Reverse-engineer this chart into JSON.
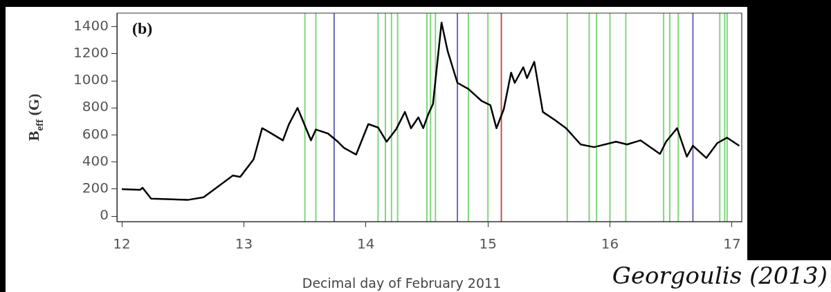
{
  "chart_data": {
    "type": "line",
    "xlabel": "Decimal day of February 2011",
    "ylabel": "B$_{eff}$ (G)",
    "annotations": [
      "(b)",
      "Georgoulis (2013)"
    ],
    "x": [
      12.0,
      12.15,
      12.17,
      12.24,
      12.54,
      12.67,
      12.76,
      12.91,
      12.97,
      13.08,
      13.15,
      13.21,
      13.32,
      13.37,
      13.44,
      13.55,
      13.59,
      13.69,
      13.77,
      13.82,
      13.92,
      14.02,
      14.1,
      14.17,
      14.25,
      14.32,
      14.37,
      14.43,
      14.47,
      14.51,
      14.55,
      14.62,
      14.67,
      14.75,
      14.84,
      14.95,
      15.02,
      15.07,
      15.13,
      15.19,
      15.22,
      15.29,
      15.32,
      15.38,
      15.45,
      15.55,
      15.64,
      15.76,
      15.87,
      16.05,
      16.14,
      16.25,
      16.41,
      16.46,
      16.55,
      16.63,
      16.68,
      16.79,
      16.88,
      16.96,
      17.06
    ],
    "series": [
      {
        "color": "#000000",
        "values": [
          200,
          195,
          210,
          130,
          120,
          140,
          200,
          300,
          290,
          420,
          650,
          620,
          560,
          680,
          800,
          560,
          640,
          610,
          550,
          505,
          455,
          680,
          655,
          550,
          645,
          770,
          650,
          730,
          650,
          750,
          830,
          1430,
          1220,
          985,
          940,
          850,
          820,
          650,
          790,
          1060,
          985,
          1100,
          1020,
          1140,
          770,
          710,
          650,
          530,
          510,
          550,
          530,
          560,
          460,
          550,
          650,
          440,
          520,
          430,
          540,
          580,
          520
        ]
      }
    ],
    "xlim": [
      11.96,
      17.08
    ],
    "xticks": [
      12,
      13,
      14,
      15,
      16,
      17
    ],
    "ylim": [
      -40,
      1500
    ],
    "yticks": [
      0,
      200,
      400,
      600,
      800,
      1000,
      1200,
      1400
    ],
    "grid": false,
    "legend": false,
    "marker": "none",
    "line_style": "solid",
    "ref_lines": [
      {
        "axis": "x",
        "value": 13.5,
        "color": "#7fd67f"
      },
      {
        "axis": "x",
        "value": 13.59,
        "color": "#7fd67f"
      },
      {
        "axis": "x",
        "value": 13.74,
        "color": "#6a6ab8"
      },
      {
        "axis": "x",
        "value": 14.1,
        "color": "#7fd67f"
      },
      {
        "axis": "x",
        "value": 14.16,
        "color": "#7fd67f"
      },
      {
        "axis": "x",
        "value": 14.21,
        "color": "#7fd67f"
      },
      {
        "axis": "x",
        "value": 14.26,
        "color": "#7fd67f"
      },
      {
        "axis": "x",
        "value": 14.5,
        "color": "#7fd67f"
      },
      {
        "axis": "x",
        "value": 14.53,
        "color": "#7fd67f"
      },
      {
        "axis": "x",
        "value": 14.57,
        "color": "#7fd67f"
      },
      {
        "axis": "x",
        "value": 14.75,
        "color": "#6a6ab8"
      },
      {
        "axis": "x",
        "value": 14.84,
        "color": "#7fd67f"
      },
      {
        "axis": "x",
        "value": 15.0,
        "color": "#7fd67f"
      },
      {
        "axis": "x",
        "value": 15.11,
        "color": "#c05050"
      },
      {
        "axis": "x",
        "value": 15.65,
        "color": "#7fd67f"
      },
      {
        "axis": "x",
        "value": 15.83,
        "color": "#7fd67f"
      },
      {
        "axis": "x",
        "value": 15.89,
        "color": "#7fd67f"
      },
      {
        "axis": "x",
        "value": 16.0,
        "color": "#7fd67f"
      },
      {
        "axis": "x",
        "value": 16.13,
        "color": "#7fd67f"
      },
      {
        "axis": "x",
        "value": 16.44,
        "color": "#7fd67f"
      },
      {
        "axis": "x",
        "value": 16.49,
        "color": "#7fd67f"
      },
      {
        "axis": "x",
        "value": 16.56,
        "color": "#7fd67f"
      },
      {
        "axis": "x",
        "value": 16.68,
        "color": "#6a6ab8"
      },
      {
        "axis": "x",
        "value": 16.9,
        "color": "#7fd67f"
      },
      {
        "axis": "x",
        "value": 16.94,
        "color": "#7fd67f"
      },
      {
        "axis": "x",
        "value": 16.96,
        "color": "#7fd67f"
      }
    ]
  }
}
